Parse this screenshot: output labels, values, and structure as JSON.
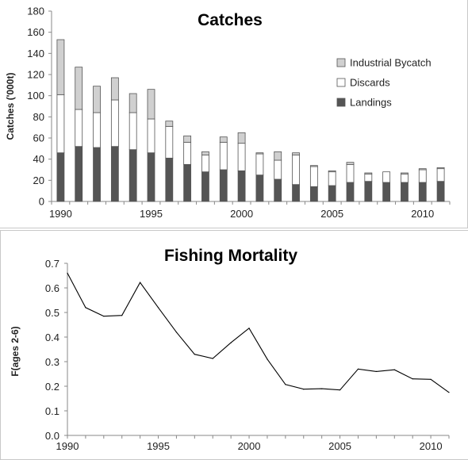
{
  "chart_data": [
    {
      "type": "bar",
      "stacked": true,
      "title": "Catches",
      "xlabel": "",
      "ylabel": "Catches ('000t)",
      "ylim": [
        0,
        180
      ],
      "yticks": [
        0,
        20,
        40,
        60,
        80,
        100,
        120,
        140,
        160,
        180
      ],
      "xticks": [
        "1990",
        "1995",
        "2000",
        "2005",
        "2010"
      ],
      "categories": [
        1990,
        1991,
        1992,
        1993,
        1994,
        1995,
        1996,
        1997,
        1998,
        1999,
        2000,
        2001,
        2002,
        2003,
        2004,
        2005,
        2006,
        2007,
        2008,
        2009,
        2010,
        2011
      ],
      "series": [
        {
          "name": "Landings",
          "color": "#555555",
          "values": [
            46,
            52,
            51,
            52,
            49,
            46,
            41,
            35,
            28,
            30,
            29,
            25,
            21,
            16,
            14,
            15,
            18,
            19,
            18,
            18,
            18,
            19
          ]
        },
        {
          "name": "Discards",
          "color": "#ffffff",
          "values": [
            55,
            35,
            33,
            44,
            35,
            32,
            30,
            21,
            16,
            26,
            26,
            20,
            18,
            28,
            19,
            13,
            17,
            7,
            10,
            8,
            12,
            12
          ]
        },
        {
          "name": "Industrial Bycatch",
          "color": "#d0d0d0",
          "values": [
            52,
            40,
            25,
            21,
            18,
            28,
            5,
            6,
            3,
            5,
            10,
            1,
            8,
            2,
            1,
            1,
            2,
            1,
            0,
            1,
            1,
            1
          ]
        }
      ],
      "legend_order": [
        "Industrial Bycatch",
        "Discards",
        "Landings"
      ],
      "legend_position": "right"
    },
    {
      "type": "line",
      "title": "Fishing Mortality",
      "xlabel": "",
      "ylabel": "F(ages 2-6)",
      "ylim": [
        0,
        0.7
      ],
      "yticks": [
        "0.0",
        "0.1",
        "0.2",
        "0.3",
        "0.4",
        "0.5",
        "0.6",
        "0.7"
      ],
      "xlim": [
        1990,
        2011
      ],
      "xticks": [
        "1990",
        "1995",
        "2000",
        "2005",
        "2010"
      ],
      "x": [
        1990,
        1991,
        1992,
        1993,
        1994,
        1995,
        1996,
        1997,
        1998,
        1999,
        2000,
        2001,
        2002,
        2003,
        2004,
        2005,
        2006,
        2007,
        2008,
        2009,
        2010,
        2011
      ],
      "y": [
        0.66,
        0.52,
        0.485,
        0.488,
        0.622,
        0.52,
        0.42,
        0.33,
        0.313,
        0.377,
        0.436,
        0.31,
        0.207,
        0.188,
        0.19,
        0.185,
        0.27,
        0.26,
        0.267,
        0.23,
        0.228,
        0.175
      ],
      "line_color": "#000000"
    }
  ]
}
